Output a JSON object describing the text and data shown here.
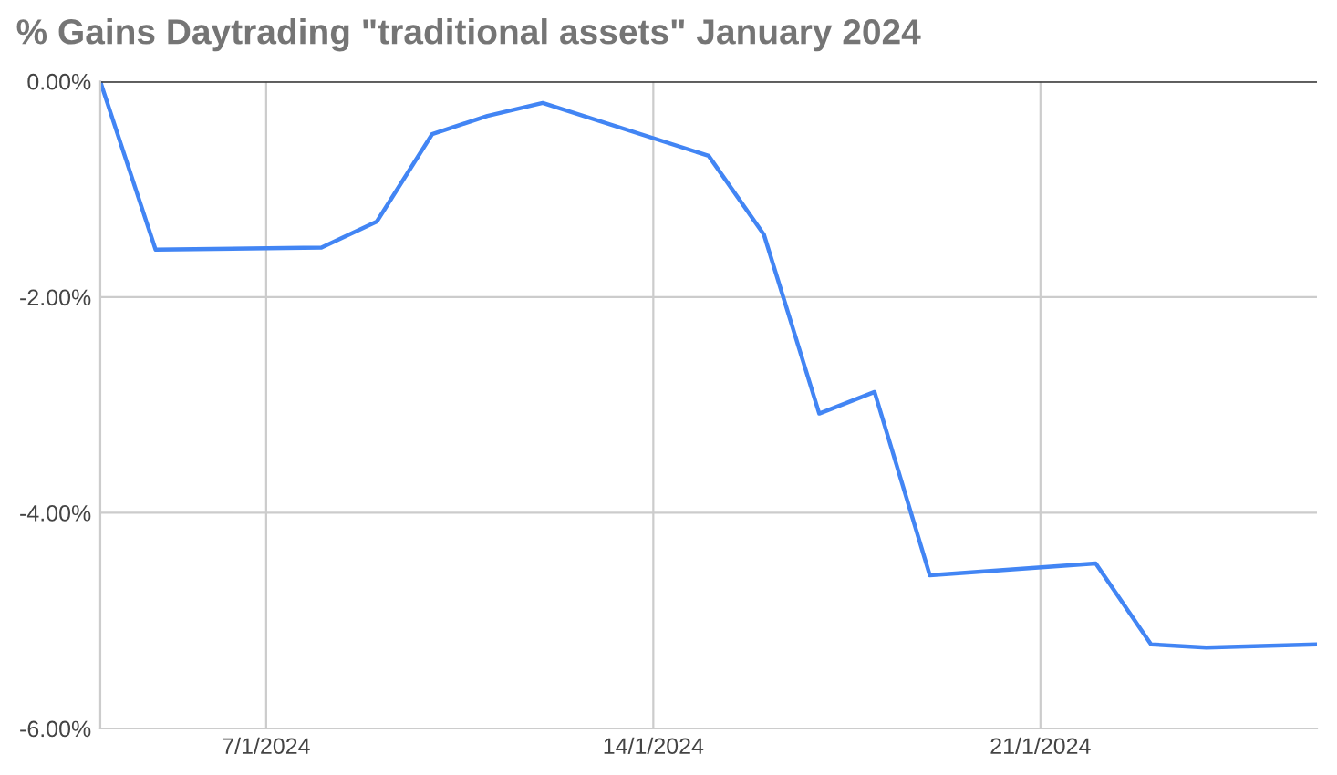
{
  "chart_data": {
    "type": "line",
    "title": "% Gains Daytrading \"traditional assets\" January 2024",
    "x": [
      "2024-01-04",
      "2024-01-05",
      "2024-01-08",
      "2024-01-09",
      "2024-01-10",
      "2024-01-11",
      "2024-01-12",
      "2024-01-15",
      "2024-01-16",
      "2024-01-17",
      "2024-01-18",
      "2024-01-19",
      "2024-01-22",
      "2024-01-23",
      "2024-01-24",
      "2024-01-26"
    ],
    "series": [
      {
        "color": "#4285f4",
        "values": [
          0,
          -1.56,
          -1.54,
          -1.3,
          -0.49,
          -0.32,
          -0.2,
          -0.69,
          -1.42,
          -3.08,
          -2.88,
          -4.58,
          -4.47,
          -5.22,
          -5.25,
          -5.22
        ]
      }
    ],
    "xlim": [
      "2024-01-04",
      "2024-01-26"
    ],
    "xticks": [
      {
        "value": "2024-01-07",
        "label": "7/1/2024"
      },
      {
        "value": "2024-01-14",
        "label": "14/1/2024"
      },
      {
        "value": "2024-01-21",
        "label": "21/1/2024"
      }
    ],
    "ylim": [
      -6,
      0
    ],
    "yticks": [
      {
        "value": 0,
        "label": "0.00%"
      },
      {
        "value": -2,
        "label": "-2.00%"
      },
      {
        "value": -4,
        "label": "-4.00%"
      },
      {
        "value": -6,
        "label": "-6.00%"
      }
    ],
    "grid": true,
    "marker": "none",
    "line_style": "solid"
  }
}
